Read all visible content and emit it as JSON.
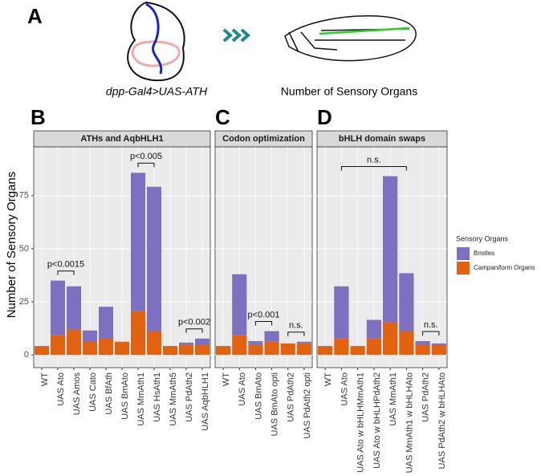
{
  "figure": {
    "panel_a": "A",
    "caption_left": "dpp-Gal4>UAS-ATH",
    "caption_right": "Number of Sensory Organs",
    "panel_b": "B",
    "panel_c": "C",
    "panel_d": "D"
  },
  "chart_data": [
    {
      "type": "bar",
      "stacked": true,
      "title": "ATHs and AqbHLH1",
      "y_label": "Number of Sensory Organs",
      "legend_title": "Sensory Organs",
      "grid": true,
      "categories": [
        "WT",
        "UAS Ato",
        "UAS Amos",
        "UAS Cato",
        "UAS BfAth",
        "UAS BmAto",
        "UAS MmAth1",
        "UAS HsAth1",
        "UAS MmAth5",
        "UAS PdAth2",
        "UAS AqbHLH1"
      ],
      "series": [
        {
          "name": "Campaniform Organs",
          "color": "#e3620f",
          "values": [
            4.2,
            9.2,
            12,
            6.5,
            8,
            6.2,
            20.8,
            11.2,
            4.2,
            5,
            4.6
          ]
        },
        {
          "name": "Bristles",
          "color": "#7d70c0",
          "values": [
            0,
            25.8,
            20.3,
            5,
            14.7,
            0,
            65,
            68,
            0,
            0.8,
            3.1
          ]
        }
      ],
      "ylim": [
        -6,
        98
      ],
      "yticks": [
        0,
        25,
        50,
        75
      ],
      "annotations": [
        {
          "text": "p<0.0015",
          "from": 1,
          "to": 2
        },
        {
          "text": "p<0.005",
          "from": 6,
          "to": 7
        },
        {
          "text": "p<0.002",
          "from": 9,
          "to": 10
        }
      ]
    },
    {
      "type": "bar",
      "stacked": true,
      "title": "Codon optimization",
      "grid": true,
      "categories": [
        "WT",
        "UAS Ato",
        "UAS BmAto",
        "UAS BmAto opti",
        "UAS PdAth2",
        "UAS PdAth2 opti"
      ],
      "series": [
        {
          "name": "Campaniform Organs",
          "color": "#e3620f",
          "values": [
            4.2,
            9.2,
            5,
            6.2,
            5.4,
            5.4
          ]
        },
        {
          "name": "Bristles",
          "color": "#7d70c0",
          "values": [
            0,
            28.8,
            1.5,
            5,
            0,
            0.8
          ]
        }
      ],
      "ylim": [
        -6,
        98
      ],
      "yticks": [
        0,
        25,
        50,
        75
      ],
      "annotations": [
        {
          "text": "p<0.001",
          "from": 2,
          "to": 3
        },
        {
          "text": "n.s.",
          "from": 4,
          "to": 5
        }
      ]
    },
    {
      "type": "bar",
      "stacked": true,
      "title": "bHLH domain swaps",
      "grid": true,
      "categories": [
        "WT",
        "UAS Ato",
        "UAS Ato w bHLHMmAth1",
        "UAS Ato w bHLHPdAth2",
        "UAS MmAth1",
        "UAS MmAth1 w bHLHAto",
        "UAS PdAth2",
        "UAS PdAth2 w bHLHAto"
      ],
      "series": [
        {
          "name": "Campaniform Organs",
          "color": "#e3620f",
          "values": [
            4.2,
            7.7,
            4.2,
            7.7,
            15.4,
            11.2,
            5,
            4.6
          ]
        },
        {
          "name": "Bristles",
          "color": "#7d70c0",
          "values": [
            0,
            24.6,
            0,
            8.8,
            68.8,
            27.3,
            1.5,
            0.8
          ]
        }
      ],
      "ylim": [
        -6,
        98
      ],
      "yticks": [
        0,
        25,
        50,
        75
      ],
      "annotations": [
        {
          "text": "n.s.",
          "from": 1,
          "to": 5
        },
        {
          "text": "n.s.",
          "from": 6,
          "to": 7
        }
      ]
    }
  ]
}
